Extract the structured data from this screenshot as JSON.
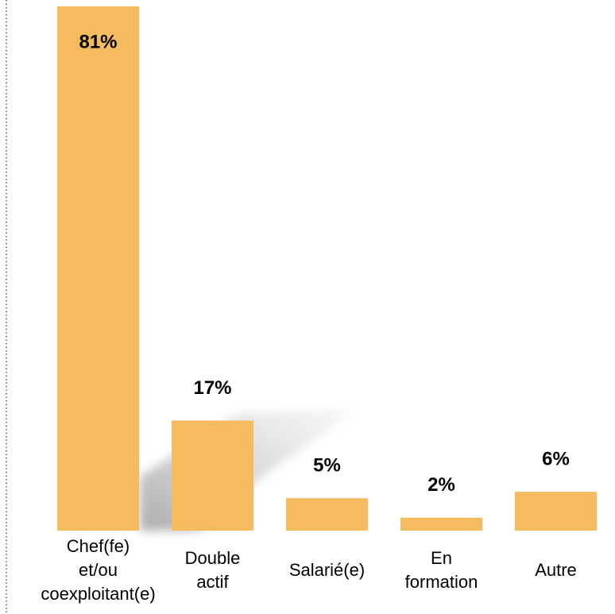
{
  "chart_data": {
    "type": "bar",
    "categories": [
      "Chef(fe) et/ou coexploitant(e)",
      "Double actif",
      "Salarié(e)",
      "En formation",
      "Autre"
    ],
    "values": [
      81,
      17,
      5,
      2,
      6
    ],
    "value_labels": [
      "81%",
      "17%",
      "5%",
      "2%",
      "6%"
    ],
    "color": "#f5bb5e"
  }
}
